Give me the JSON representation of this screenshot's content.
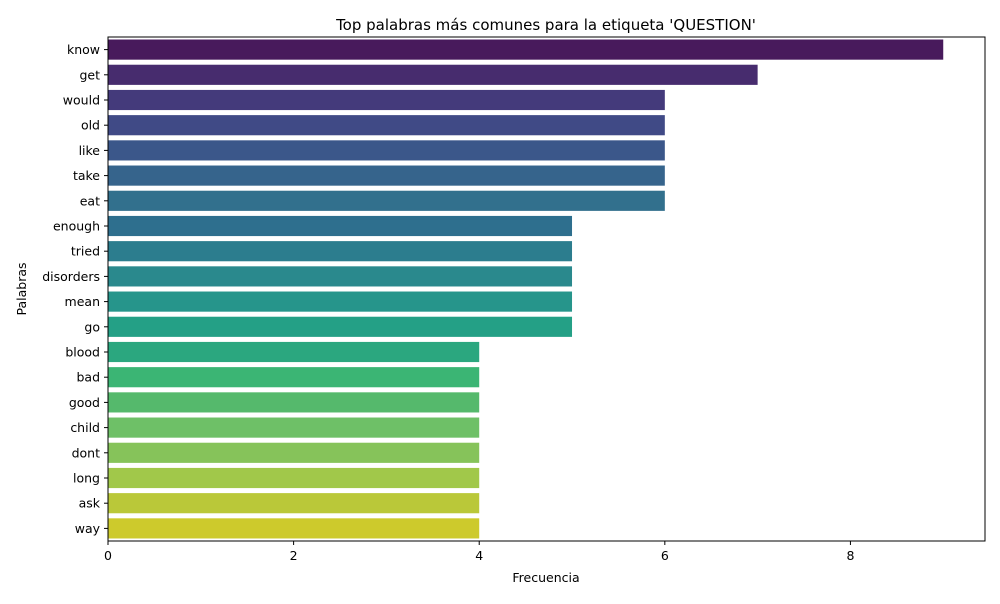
{
  "chart_data": {
    "type": "bar",
    "orientation": "horizontal",
    "title": "Top palabras más comunes para la etiqueta 'QUESTION'",
    "xlabel": "Frecuencia",
    "ylabel": "Palabras",
    "xlim": [
      0,
      9.45
    ],
    "x_ticks": [
      0,
      2,
      4,
      6,
      8
    ],
    "grid": false,
    "legend": "none",
    "palette": "viridis",
    "categories": [
      "know",
      "get",
      "would",
      "old",
      "like",
      "take",
      "eat",
      "enough",
      "tried",
      "disorders",
      "mean",
      "go",
      "blood",
      "bad",
      "good",
      "child",
      "dont",
      "long",
      "ask",
      "way"
    ],
    "values": [
      9,
      7,
      6,
      6,
      6,
      6,
      6,
      5,
      5,
      5,
      5,
      5,
      4,
      4,
      4,
      4,
      4,
      4,
      4,
      4
    ],
    "colors": [
      "#481a5c",
      "#472c6e",
      "#443a7b",
      "#404a86",
      "#3b578a",
      "#36648c",
      "#32708d",
      "#2e6f8e",
      "#2c7d8e",
      "#2a898d",
      "#26958b",
      "#24a086",
      "#2ba77f",
      "#3bb574",
      "#55b96c",
      "#6ec067",
      "#86c35a",
      "#a1c84a",
      "#bac839",
      "#cdca2c"
    ]
  }
}
